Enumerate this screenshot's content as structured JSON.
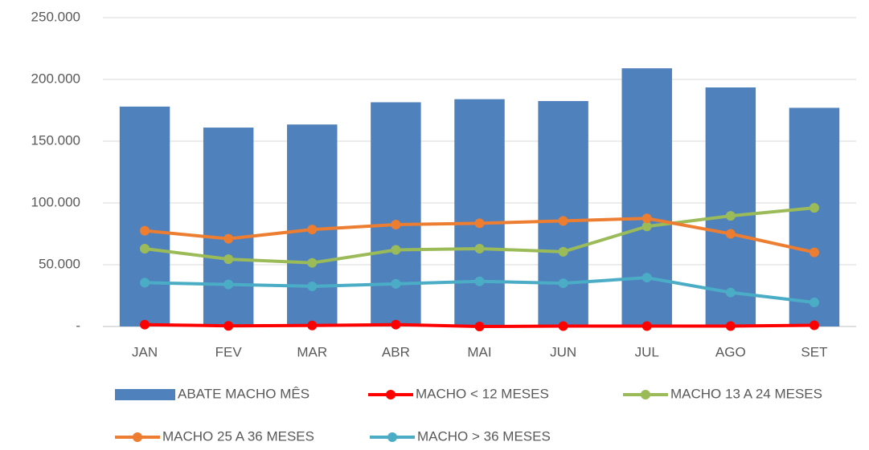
{
  "chart_data": {
    "type": "combo",
    "categories": [
      "JAN",
      "FEV",
      "MAR",
      "ABR",
      "MAI",
      "JUN",
      "JUL",
      "AGO",
      "SET"
    ],
    "series": [
      {
        "name": "ABATE MACHO MÊS",
        "type": "bar",
        "color": "#4f81bd",
        "values": [
          178000,
          161000,
          163500,
          181500,
          184000,
          182500,
          209000,
          193500,
          177000
        ]
      },
      {
        "name": "MACHO < 12 MESES",
        "type": "line",
        "color": "#ff0000",
        "values": [
          1500,
          500,
          800,
          1500,
          0,
          300,
          300,
          300,
          1000
        ]
      },
      {
        "name": "MACHO 13 A 24 MESES",
        "type": "line",
        "color": "#9bbb59",
        "values": [
          63000,
          54500,
          51500,
          62000,
          63000,
          60500,
          81000,
          89500,
          96000
        ]
      },
      {
        "name": "MACHO 25 A 36 MESES",
        "type": "line",
        "color": "#ed7d31",
        "values": [
          77500,
          71000,
          78500,
          82500,
          83500,
          85500,
          87500,
          75000,
          60000
        ]
      },
      {
        "name": "MACHO > 36 MESES",
        "type": "line",
        "color": "#4bacc6",
        "values": [
          35500,
          34000,
          32500,
          34500,
          36500,
          35000,
          39500,
          27500,
          19500
        ]
      }
    ],
    "ylim": [
      0,
      250000
    ],
    "yticks": [
      {
        "value": 0,
        "label": "-"
      },
      {
        "value": 50000,
        "label": "50.000"
      },
      {
        "value": 100000,
        "label": "100.000"
      },
      {
        "value": 150000,
        "label": "150.000"
      },
      {
        "value": 200000,
        "label": "200.000"
      },
      {
        "value": 250000,
        "label": "250.000"
      }
    ],
    "grid": true
  }
}
